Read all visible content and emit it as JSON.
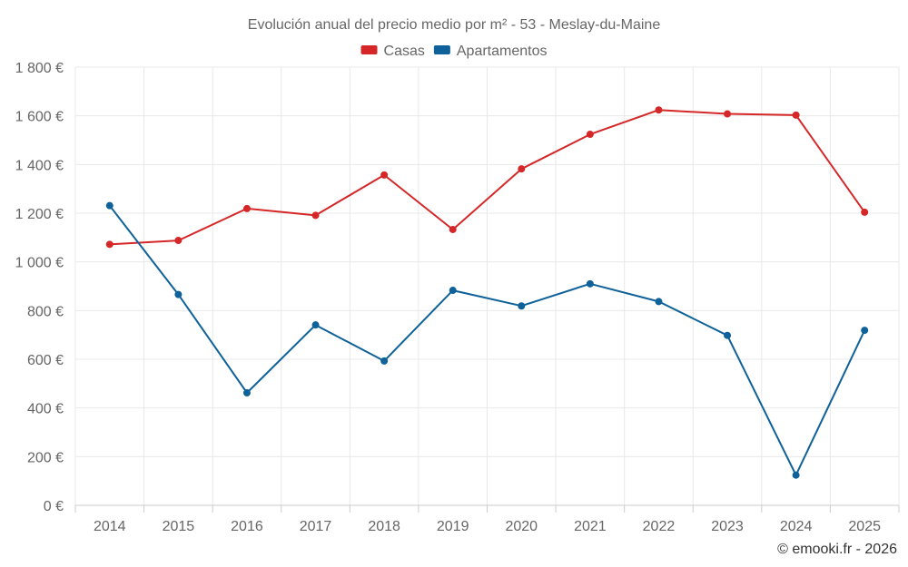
{
  "chart_data": {
    "type": "line",
    "title": "Evolución anual del precio medio por m² - 53 - Meslay-du-Maine",
    "xlabel": "",
    "ylabel": "",
    "categories": [
      "2014",
      "2015",
      "2016",
      "2017",
      "2018",
      "2019",
      "2020",
      "2021",
      "2022",
      "2023",
      "2024",
      "2025"
    ],
    "ylim": [
      0,
      1800
    ],
    "yticks": [
      0,
      200,
      400,
      600,
      800,
      1000,
      1200,
      1400,
      1600,
      1800
    ],
    "ytick_labels": [
      "0 €",
      "200 €",
      "400 €",
      "600 €",
      "800 €",
      "1 000 €",
      "1 200 €",
      "1 400 €",
      "1 600 €",
      "1 800 €"
    ],
    "grid": true,
    "legend_position": "top-center",
    "series": [
      {
        "name": "Casas",
        "color": "#d62728",
        "values": [
          1072,
          1088,
          1219,
          1191,
          1357,
          1133,
          1382,
          1524,
          1624,
          1608,
          1603,
          1204
        ]
      },
      {
        "name": "Apartamentos",
        "color": "#0e6199",
        "values": [
          1231,
          866,
          462,
          741,
          593,
          883,
          819,
          910,
          837,
          698,
          124,
          719
        ]
      }
    ]
  },
  "credit": "© emooki.fr - 2026"
}
